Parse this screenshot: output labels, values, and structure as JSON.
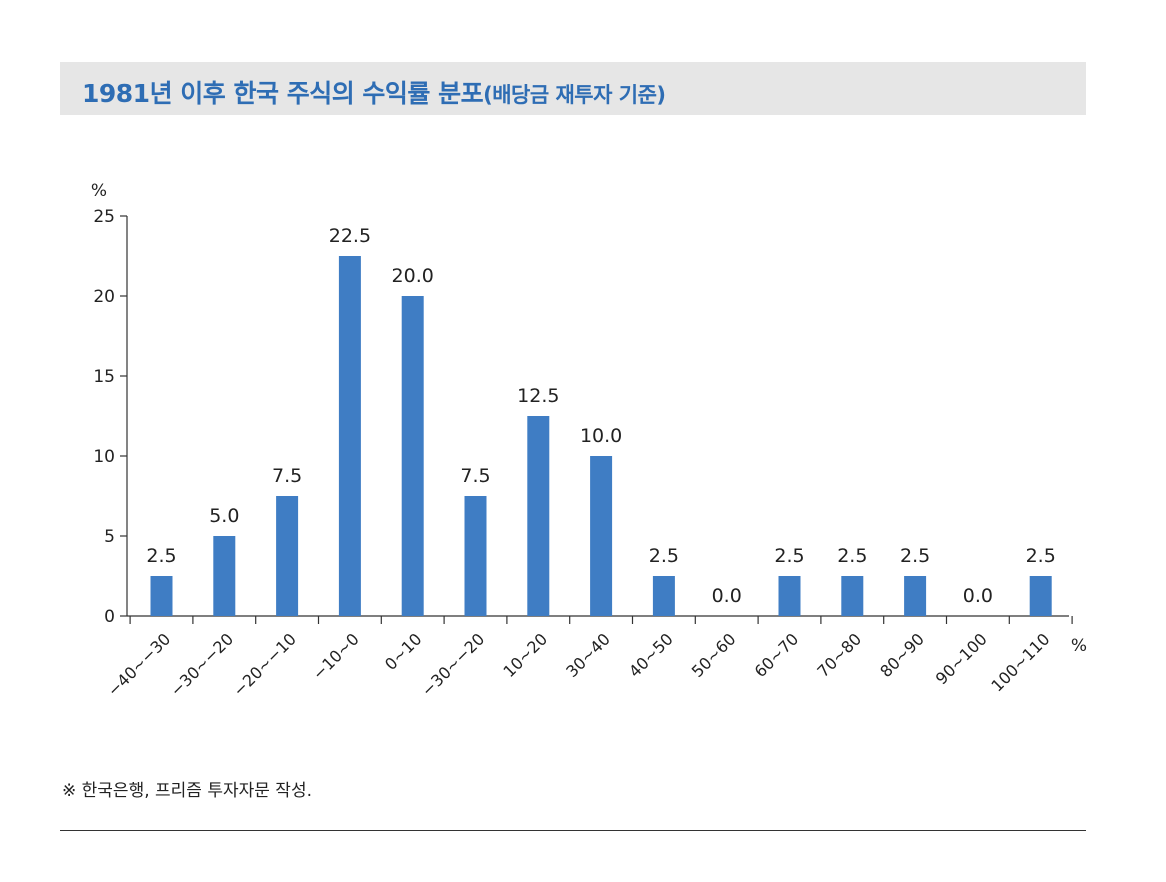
{
  "header": {
    "title_main": "1981년 이후 한국 주식의 수익률 분포",
    "title_sub": "(배당금 재투자 기준)"
  },
  "chart_data": {
    "type": "bar",
    "title": "1981년 이후 한국 주식의 수익률 분포(배당금 재투자 기준)",
    "ylabel": "%",
    "xlabel": "%",
    "ylim": [
      0,
      25
    ],
    "yticks": [
      0,
      5,
      10,
      15,
      20,
      25
    ],
    "categories": [
      "−40~−30",
      "−30~−20",
      "−20~−10",
      "−10~0",
      "0~10",
      "−30~−20",
      "10~20",
      "30~40",
      "40~50",
      "50~60",
      "60~70",
      "70~80",
      "80~90",
      "90~100",
      "100~110"
    ],
    "values": [
      2.5,
      5.0,
      7.5,
      22.5,
      20.0,
      7.5,
      12.5,
      10.0,
      2.5,
      0.0,
      2.5,
      2.5,
      2.5,
      0.0,
      2.5
    ],
    "value_labels": [
      "2.5",
      "5.0",
      "7.5",
      "22.5",
      "20.0",
      "7.5",
      "12.5",
      "10.0",
      "2.5",
      "0.0",
      "2.5",
      "2.5",
      "2.5",
      "0.0",
      "2.5"
    ],
    "bar_color": "#3f7dc4",
    "grid": false
  },
  "footer": {
    "source": "※ 한국은행, 프리즘 투자자문 작성."
  }
}
